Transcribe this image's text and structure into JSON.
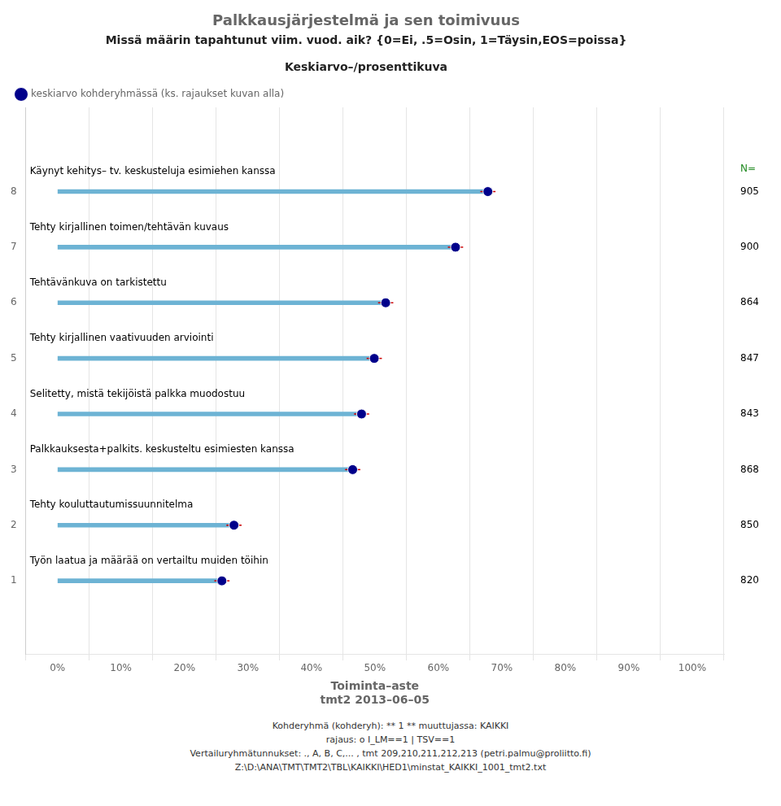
{
  "chart_data": {
    "type": "bar",
    "orientation": "horizontal",
    "title": "Palkkausjärjestelmä ja sen toimivuus",
    "subtitle": "Missä määrin tapahtunut viim. vuod. aik? {0=Ei, .5=Osin, 1=Täysin,EOS=poissa}",
    "chart_title": "Keskiarvo–/prosenttikuva",
    "xlabel": "Toiminta–aste\ntmt2 2013–06–05",
    "notes": [
      "Kohderyhmä (kohderyh): ** 1 ** muuttujassa:  KAIKKI",
      "rajaus:  o I_LM==1 | TSV==1",
      "Vertailuryhmätunnukset: ., A, B, C,...  , tmt 209,210,211,212,213 (petri.palmu@proliitto.fi)",
      "Z:\\D:\\ANA\\TMT\\TMT2\\TBL\\KAIKKI\\HED1\\minstat_KAIKKI_1001_tmt2.txt"
    ],
    "categories": [
      "Käynyt kehitys– tv. keskusteluja esimiehen kanssa",
      "Tehty kirjallinen toimen/tehtävän kuvaus",
      "Tehtävänkuva on tarkistettu",
      "Tehty kirjallinen vaativuuden arviointi",
      "Selitetty, mistä tekijöistä palkka muodostuu",
      "Palkkauksesta+palkits. keskusteltu esimiesten kanssa",
      "Tehty kouluttautumissuunnitelma",
      "Työn laatua ja määrää on vertailtu muiden töihin"
    ],
    "series": [
      {
        "type": "bar",
        "color": "#6db3d4",
        "values": [
          0.678,
          0.627,
          0.517,
          0.499,
          0.479,
          0.465,
          0.278,
          0.259
        ]
      },
      {
        "type": "scatter",
        "name": "keskiarvo kohderyhmässä (ks. rajaukset kuvan alla)",
        "color": "#00008B",
        "marker": "circle",
        "values": [
          0.678,
          0.627,
          0.517,
          0.499,
          0.479,
          0.465,
          0.278,
          0.259
        ],
        "error_bars": {
          "low": [
            0.012,
            0.012,
            0.012,
            0.012,
            0.012,
            0.012,
            0.012,
            0.012
          ],
          "high": [
            0.012,
            0.012,
            0.012,
            0.012,
            0.012,
            0.012,
            0.012,
            0.012
          ],
          "color": "#cc0000"
        }
      }
    ],
    "n": {
      "label": "N=",
      "color": "#228B22",
      "values": [
        905,
        900,
        864,
        847,
        843,
        868,
        850,
        820
      ]
    },
    "xlim": [
      0.0,
      1.0
    ],
    "xticks": [
      {
        "value": 0,
        "label": "0%"
      },
      {
        "value": 0.1,
        "label": "10%"
      },
      {
        "value": 0.2,
        "label": "20%"
      },
      {
        "value": 0.3,
        "label": "30%"
      },
      {
        "value": 0.4,
        "label": "40%"
      },
      {
        "value": 0.5,
        "label": "50%"
      },
      {
        "value": 0.6,
        "label": "60%"
      },
      {
        "value": 0.7,
        "label": "70%"
      },
      {
        "value": 0.8,
        "label": "80%"
      },
      {
        "value": 0.9,
        "label": "90%"
      },
      {
        "value": 1.0,
        "label": "100%"
      }
    ],
    "ylim": [
      0.3,
      8.9
    ],
    "yticks": [
      1,
      2,
      3,
      4,
      5,
      6,
      7,
      8
    ],
    "grid": "x"
  }
}
